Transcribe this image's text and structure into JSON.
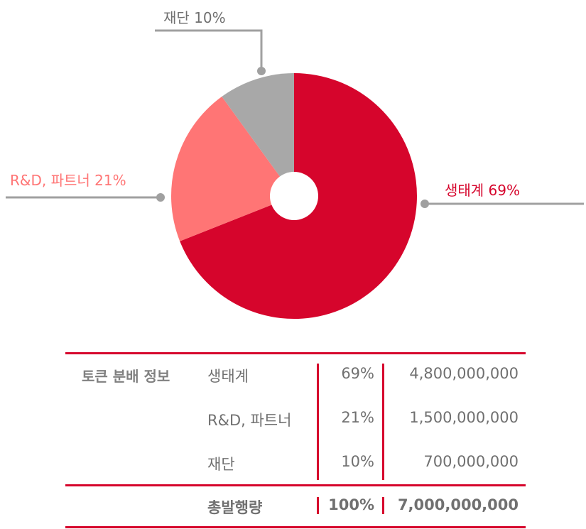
{
  "chart_data": {
    "type": "pie",
    "title": "",
    "slices": [
      {
        "label": "생태계",
        "value": 69,
        "label_text": "생태계 69%",
        "color": "#d6052c"
      },
      {
        "label": "R&D, 파트너",
        "value": 21,
        "label_text": "R&D, 파트너 21%",
        "color": "#ff7575"
      },
      {
        "label": "재단",
        "value": 10,
        "label_text": "재단 10%",
        "color": "#a8a8a8"
      }
    ],
    "start_angle_deg": 0,
    "direction": "clockwise",
    "hole": true,
    "leader_color": "#a0a0a0"
  },
  "table": {
    "section_title": "토큰 분배 정보",
    "rows": [
      {
        "name": "생태계",
        "percent": "69%",
        "amount": "4,800,000,000"
      },
      {
        "name": "R&D, 파트너",
        "percent": "21%",
        "amount": "1,500,000,000"
      },
      {
        "name": "재단",
        "percent": "10%",
        "amount": "700,000,000"
      }
    ],
    "total": {
      "name": "총발행량",
      "percent": "100%",
      "amount": "7,000,000,000"
    },
    "rule_color": "#d6052c",
    "text_color": "#707070"
  }
}
